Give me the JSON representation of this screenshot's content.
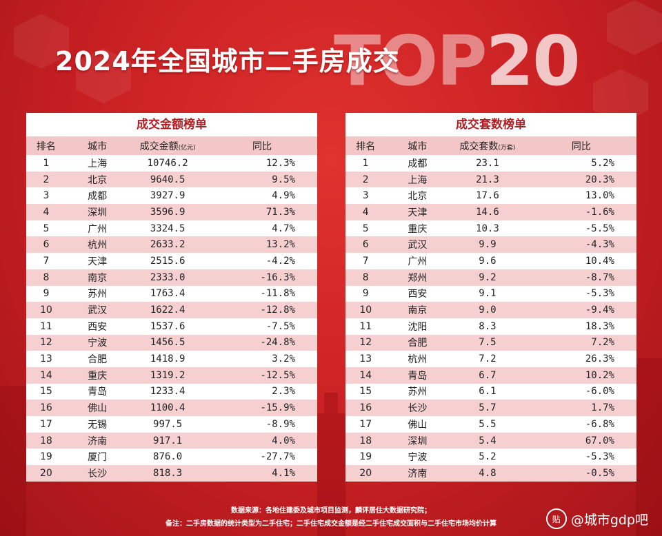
{
  "title": "2024年全国城市二手房成交",
  "top_text": "TOP",
  "top_num": "20",
  "left_table": {
    "title": "成交金额榜单",
    "headers": [
      "排名",
      "城市",
      "成交金额",
      "(亿元)",
      "同比"
    ],
    "rows": [
      [
        "1",
        "上海",
        "10746.2",
        "12.3%"
      ],
      [
        "2",
        "北京",
        "9640.5",
        "9.5%"
      ],
      [
        "3",
        "成都",
        "3927.9",
        "4.9%"
      ],
      [
        "4",
        "深圳",
        "3596.9",
        "71.3%"
      ],
      [
        "5",
        "广州",
        "3324.5",
        "4.7%"
      ],
      [
        "6",
        "杭州",
        "2633.2",
        "13.2%"
      ],
      [
        "7",
        "天津",
        "2515.6",
        "-4.2%"
      ],
      [
        "8",
        "南京",
        "2333.0",
        "-16.3%"
      ],
      [
        "9",
        "苏州",
        "1763.4",
        "-11.8%"
      ],
      [
        "10",
        "武汉",
        "1622.4",
        "-12.8%"
      ],
      [
        "11",
        "西安",
        "1537.6",
        "-7.5%"
      ],
      [
        "12",
        "宁波",
        "1456.5",
        "-24.8%"
      ],
      [
        "13",
        "合肥",
        "1418.9",
        "3.2%"
      ],
      [
        "14",
        "重庆",
        "1319.2",
        "-12.5%"
      ],
      [
        "15",
        "青岛",
        "1233.4",
        "2.3%"
      ],
      [
        "16",
        "佛山",
        "1100.4",
        "-15.9%"
      ],
      [
        "17",
        "无锡",
        "997.5",
        "-8.9%"
      ],
      [
        "18",
        "济南",
        "917.1",
        "4.0%"
      ],
      [
        "19",
        "厦门",
        "876.0",
        "-27.7%"
      ],
      [
        "20",
        "长沙",
        "818.3",
        "4.1%"
      ]
    ]
  },
  "right_table": {
    "title": "成交套数榜单",
    "headers": [
      "排名",
      "城市",
      "成交套数",
      "(万套)",
      "同比"
    ],
    "rows": [
      [
        "1",
        "成都",
        "23.1",
        "5.2%"
      ],
      [
        "2",
        "上海",
        "21.3",
        "20.3%"
      ],
      [
        "3",
        "北京",
        "17.6",
        "13.0%"
      ],
      [
        "4",
        "天津",
        "14.6",
        "-1.6%"
      ],
      [
        "5",
        "重庆",
        "10.3",
        "-5.5%"
      ],
      [
        "6",
        "武汉",
        "9.9",
        "-4.3%"
      ],
      [
        "7",
        "广州",
        "9.6",
        "10.4%"
      ],
      [
        "8",
        "郑州",
        "9.2",
        "-8.7%"
      ],
      [
        "9",
        "西安",
        "9.1",
        "-5.3%"
      ],
      [
        "10",
        "南京",
        "9.0",
        "-9.4%"
      ],
      [
        "11",
        "沈阳",
        "8.3",
        "18.3%"
      ],
      [
        "12",
        "合肥",
        "7.5",
        "7.2%"
      ],
      [
        "13",
        "杭州",
        "7.2",
        "26.3%"
      ],
      [
        "14",
        "青岛",
        "6.7",
        "10.2%"
      ],
      [
        "15",
        "苏州",
        "6.1",
        "-6.0%"
      ],
      [
        "16",
        "长沙",
        "5.7",
        "1.7%"
      ],
      [
        "17",
        "佛山",
        "5.5",
        "-6.8%"
      ],
      [
        "18",
        "深圳",
        "5.4",
        "67.0%"
      ],
      [
        "19",
        "宁波",
        "5.2",
        "-5.3%"
      ],
      [
        "20",
        "济南",
        "4.8",
        "-0.5%"
      ]
    ]
  },
  "footer": {
    "source": "数据来源：各地住建委及城市项目监测，麟评居住大数据研究院；",
    "note": "备注：二手房数据的统计类型为二手住宅；二手住宅成交金额是经二手住宅成交面积与二手住宅市场均价计算"
  },
  "watermark": {
    "icon": "贴",
    "text": "@城市gdp吧"
  },
  "colors": {
    "background": "#c71f22",
    "accent": "#b01e22",
    "row_alt": "#f6cfd1"
  }
}
